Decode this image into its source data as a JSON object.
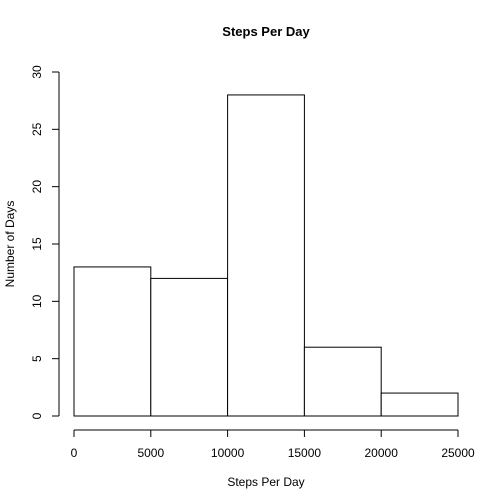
{
  "chart_data": {
    "type": "bar",
    "title": "Steps Per Day",
    "xlabel": "Steps Per Day",
    "ylabel": "Number of Days",
    "bins": [
      {
        "start": 0,
        "end": 5000,
        "count": 13
      },
      {
        "start": 5000,
        "end": 10000,
        "count": 12
      },
      {
        "start": 10000,
        "end": 15000,
        "count": 28
      },
      {
        "start": 15000,
        "end": 20000,
        "count": 6
      },
      {
        "start": 20000,
        "end": 25000,
        "count": 2
      }
    ],
    "xlim": [
      0,
      25000
    ],
    "ylim": [
      0,
      30
    ],
    "xticks": [
      0,
      5000,
      10000,
      15000,
      20000,
      25000
    ],
    "yticks": [
      0,
      5,
      10,
      15,
      20,
      25,
      30
    ],
    "grid": false,
    "legend": "none",
    "colors": {
      "bar_fill": "#ffffff",
      "bar_stroke": "#000000",
      "axis": "#000000"
    }
  }
}
